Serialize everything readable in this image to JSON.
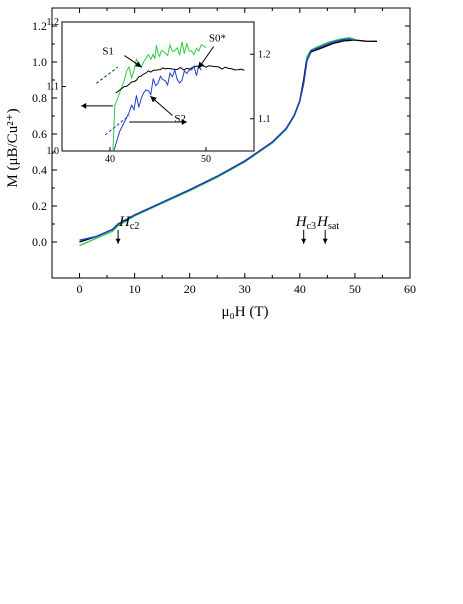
{
  "chart_data": [
    {
      "type": "line",
      "xlabel": "μ₀H (T)",
      "ylabel": "M (μB/Cu²⁺)",
      "xlim": [
        -5,
        60
      ],
      "ylim": [
        -0.2,
        1.3
      ],
      "x_ticks": [
        "0",
        "10",
        "20",
        "30",
        "40",
        "50",
        "60"
      ],
      "y_ticks": [
        "0.0",
        "0.2",
        "0.4",
        "0.6",
        "0.8",
        "1.0",
        "1.2"
      ],
      "annotations": [
        {
          "text": "Hc2",
          "x": 7,
          "y": 0.02
        },
        {
          "text": "Hc3",
          "x": 40.7,
          "y": 0.02
        },
        {
          "text": "Hsat",
          "x": 44.6,
          "y": 0.02
        }
      ],
      "series": [
        {
          "color": "#2ecc40",
          "points": [
            [
              0,
              -0.02
            ],
            [
              3,
              0.02
            ],
            [
              6,
              0.06
            ],
            [
              7,
              0.09
            ],
            [
              10,
              0.145
            ],
            [
              15,
              0.215
            ],
            [
              20,
              0.285
            ],
            [
              25,
              0.36
            ],
            [
              30,
              0.445
            ],
            [
              35,
              0.55
            ],
            [
              37.5,
              0.625
            ],
            [
              39,
              0.7
            ],
            [
              40,
              0.78
            ],
            [
              40.7,
              0.9
            ],
            [
              41.3,
              1.03
            ],
            [
              42,
              1.065
            ],
            [
              43,
              1.085
            ],
            [
              45,
              1.11
            ],
            [
              47,
              1.125
            ],
            [
              49,
              1.135
            ],
            [
              50,
              1.13
            ]
          ]
        },
        {
          "color": "#000000",
          "points": [
            [
              0,
              0.0
            ],
            [
              3,
              0.03
            ],
            [
              6,
              0.07
            ],
            [
              7,
              0.1
            ],
            [
              10,
              0.15
            ],
            [
              15,
              0.22
            ],
            [
              20,
              0.29
            ],
            [
              25,
              0.365
            ],
            [
              30,
              0.45
            ],
            [
              35,
              0.555
            ],
            [
              37.5,
              0.63
            ],
            [
              39,
              0.705
            ],
            [
              40,
              0.785
            ],
            [
              40.7,
              0.9
            ],
            [
              41.2,
              1.0
            ],
            [
              42,
              1.055
            ],
            [
              44,
              1.08
            ],
            [
              46,
              1.105
            ],
            [
              48,
              1.115
            ],
            [
              50,
              1.12
            ],
            [
              52,
              1.12
            ],
            [
              54,
              1.115
            ]
          ]
        },
        {
          "color": "#1f3fd1",
          "points": [
            [
              0,
              0.01
            ],
            [
              3,
              0.03
            ],
            [
              6,
              0.07
            ],
            [
              7,
              0.1
            ],
            [
              10,
              0.15
            ],
            [
              15,
              0.22
            ],
            [
              20,
              0.29
            ],
            [
              25,
              0.365
            ],
            [
              30,
              0.45
            ],
            [
              35,
              0.555
            ],
            [
              37.5,
              0.63
            ],
            [
              39,
              0.705
            ],
            [
              40,
              0.785
            ],
            [
              40.7,
              0.88
            ],
            [
              41.3,
              1.01
            ],
            [
              42,
              1.06
            ],
            [
              44,
              1.09
            ],
            [
              46,
              1.11
            ],
            [
              48,
              1.125
            ],
            [
              49,
              1.13
            ],
            [
              50,
              1.125
            ]
          ]
        }
      ]
    },
    {
      "type": "line",
      "xlim": [
        35,
        55
      ],
      "ylim_left": [
        1.0,
        1.2
      ],
      "ylim_right": [
        1.05,
        1.25
      ],
      "x_ticks": [
        "40",
        "50"
      ],
      "y_ticks_left": [
        "1.0",
        "1.1",
        "1.2"
      ],
      "y_ticks_right": [
        "1.1",
        "1.2"
      ],
      "labels": [
        "S1",
        "S0*",
        "S2"
      ],
      "series": [
        {
          "name": "S1",
          "color": "#2ecc40",
          "axis": "left",
          "points": [
            [
              40.3,
              1.0
            ],
            [
              40.5,
              1.07
            ],
            [
              41.5,
              1.11
            ],
            [
              43,
              1.135
            ],
            [
              44.5,
              1.15
            ],
            [
              45.5,
              1.155
            ],
            [
              47,
              1.16
            ],
            [
              48.5,
              1.155
            ],
            [
              50,
              1.16
            ]
          ]
        },
        {
          "name": "S0*",
          "color": "#000000",
          "axis": "right",
          "points": [
            [
              40.6,
              1.14
            ],
            [
              41.5,
              1.15
            ],
            [
              43,
              1.165
            ],
            [
              44.5,
              1.175
            ],
            [
              46,
              1.178
            ],
            [
              48,
              1.178
            ],
            [
              50,
              1.18
            ],
            [
              52,
              1.18
            ],
            [
              54,
              1.175
            ]
          ]
        },
        {
          "name": "S2",
          "color": "#1f3fd1",
          "axis": "left",
          "points": [
            [
              40.4,
              1.0
            ],
            [
              41,
              1.03
            ],
            [
              42,
              1.06
            ],
            [
              43.5,
              1.09
            ],
            [
              45,
              1.105
            ],
            [
              46.5,
              1.115
            ],
            [
              48,
              1.12
            ],
            [
              49.5,
              1.125
            ]
          ]
        }
      ]
    }
  ]
}
